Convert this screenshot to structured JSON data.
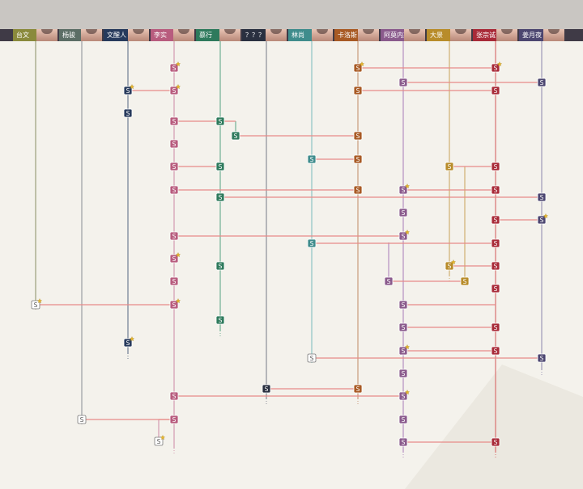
{
  "characters": [
    {
      "id": "taiwen",
      "label": "台文",
      "color": "#8a8a3c",
      "line": "#9aa07a"
    },
    {
      "id": "yangjun",
      "label": "杨骏",
      "color": "#5c6e66",
      "line": "#9a9ea4"
    },
    {
      "id": "wenxingren",
      "label": "文醒人",
      "color": "#273a5c",
      "line": "#6f7f94"
    },
    {
      "id": "lishi",
      "label": "李实",
      "color": "#b85c7e",
      "line": "#d39ab0"
    },
    {
      "id": "mosheng",
      "label": "慕行",
      "color": "#2e7a5c",
      "line": "#6fb094"
    },
    {
      "id": "unknown",
      "label": "？？？",
      "color": "#2a3040",
      "line": "#8a8e98"
    },
    {
      "id": "linshang",
      "label": "林尚",
      "color": "#3f8c8c",
      "line": "#8ec4c4"
    },
    {
      "id": "yuyeli",
      "label": "卡洛斯",
      "color": "#a85a24",
      "line": "#c89c7c"
    },
    {
      "id": "amos",
      "label": "阿莫内斯",
      "color": "#8a5a8c",
      "line": "#b48ec0"
    },
    {
      "id": "dajing",
      "label": "大景",
      "color": "#b88c2a",
      "line": "#d0b070"
    },
    {
      "id": "zhangzongshi",
      "label": "张宗诚",
      "color": "#a82a38",
      "line": "#d87070"
    },
    {
      "id": "meijian",
      "label": "姜月夜",
      "color": "#4c4670",
      "line": "#9e9ab8"
    }
  ],
  "node_label": "S",
  "link_color": "#e88a88",
  "accent_colors": {
    "topbar": "#c9c6c2",
    "header": "#3f3a46",
    "background": "#f4f2ec"
  }
}
